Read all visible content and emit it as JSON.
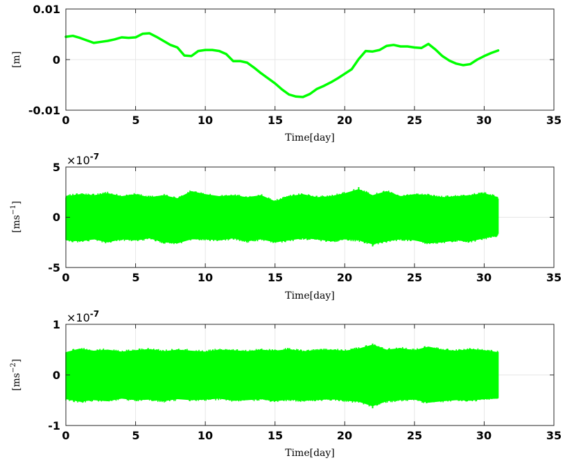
{
  "chart_data": [
    {
      "type": "line",
      "xlabel": "Time[day]",
      "ylabel": "[m]",
      "xlim": [
        0,
        35
      ],
      "ylim": [
        -0.01,
        0.01
      ],
      "xticks": [
        "0",
        "5",
        "10",
        "15",
        "20",
        "25",
        "30",
        "35"
      ],
      "yticks": [
        "-0.01",
        "0",
        "0.01"
      ],
      "grid": true,
      "color": "#00ff00",
      "series": [
        {
          "x": [
            0,
            0.5,
            1,
            1.5,
            2,
            2.5,
            3,
            3.5,
            4,
            4.5,
            5,
            5.5,
            6,
            6.5,
            7,
            7.5,
            8,
            8.5,
            9,
            9.5,
            10,
            10.5,
            11,
            11.5,
            12,
            12.5,
            13,
            13.5,
            14,
            14.5,
            15,
            15.5,
            16,
            16.5,
            17,
            17.5,
            18,
            18.5,
            19,
            19.5,
            20,
            20.5,
            21,
            21.5,
            22,
            22.5,
            23,
            23.5,
            24,
            24.5,
            25,
            25.5,
            26,
            26.5,
            27,
            27.5,
            28,
            28.5,
            29,
            29.5,
            30,
            30.5,
            31
          ],
          "y": [
            0.0045,
            0.0047,
            0.0043,
            0.0038,
            0.0033,
            0.0035,
            0.0037,
            0.004,
            0.0044,
            0.0043,
            0.0044,
            0.0051,
            0.0052,
            0.0045,
            0.0037,
            0.0029,
            0.0024,
            0.0008,
            0.0007,
            0.0017,
            0.0019,
            0.0019,
            0.0017,
            0.0011,
            -0.0003,
            -0.0003,
            -0.0006,
            -0.0016,
            -0.0027,
            -0.0037,
            -0.0047,
            -0.0059,
            -0.0069,
            -0.0073,
            -0.0074,
            -0.0068,
            -0.0058,
            -0.0052,
            -0.0045,
            -0.0037,
            -0.0028,
            -0.0019,
            0.0001,
            0.0017,
            0.0016,
            0.0019,
            0.0027,
            0.0029,
            0.0026,
            0.0026,
            0.0024,
            0.0023,
            0.0031,
            0.002,
            0.0007,
            -0.0002,
            -0.0008,
            -0.0011,
            -0.0009,
            0.0,
            0.0007,
            0.0013,
            0.0018
          ]
        }
      ]
    },
    {
      "type": "line",
      "xlabel": "Time[day]",
      "ylabel": "[ms-1]",
      "ylabel_base": "[ms",
      "ylabel_exp": "−1",
      "ylabel_close": "]",
      "multiplier_base": "×10",
      "multiplier_exp": "-7",
      "xlim": [
        0,
        35
      ],
      "ylim": [
        -5,
        5
      ],
      "xticks": [
        "0",
        "5",
        "10",
        "15",
        "20",
        "25",
        "30",
        "35"
      ],
      "yticks": [
        "-5",
        "0",
        "5"
      ],
      "grid": true,
      "color": "#00ff00",
      "series": [
        {
          "x_range": [
            0,
            31
          ],
          "envelope_x": [
            0,
            1,
            2,
            3,
            4,
            5,
            6,
            7,
            8,
            9,
            10,
            11,
            12,
            13,
            14,
            15,
            16,
            17,
            18,
            19,
            20,
            21,
            22,
            23,
            24,
            25,
            26,
            27,
            28,
            29,
            30,
            31
          ],
          "upper": [
            2.1,
            2.3,
            2.2,
            2.4,
            2.1,
            2.3,
            2.0,
            2.2,
            1.9,
            2.6,
            2.3,
            2.1,
            2.2,
            2.0,
            2.2,
            1.6,
            2.1,
            2.3,
            2.0,
            2.1,
            2.4,
            2.8,
            2.2,
            2.6,
            2.1,
            2.3,
            2.2,
            2.0,
            2.1,
            2.2,
            2.4,
            2.0
          ],
          "lower": [
            -2.3,
            -2.4,
            -2.2,
            -2.5,
            -2.2,
            -2.3,
            -2.1,
            -2.5,
            -2.6,
            -2.2,
            -2.2,
            -2.3,
            -2.1,
            -2.4,
            -2.2,
            -2.5,
            -2.3,
            -2.1,
            -2.2,
            -2.4,
            -2.2,
            -2.3,
            -2.7,
            -2.4,
            -2.2,
            -2.3,
            -2.6,
            -2.5,
            -2.3,
            -2.4,
            -2.1,
            -1.8
          ],
          "peak_max": 3.0,
          "peak_min": -2.9
        }
      ]
    },
    {
      "type": "line",
      "xlabel": "Time[day]",
      "ylabel": "[ms-2]",
      "ylabel_base": "[ms",
      "ylabel_exp": "−2",
      "ylabel_close": "]",
      "multiplier_base": "×10",
      "multiplier_exp": "-7",
      "xlim": [
        0,
        35
      ],
      "ylim": [
        -1,
        1
      ],
      "xticks": [
        "0",
        "5",
        "10",
        "15",
        "20",
        "25",
        "30",
        "35"
      ],
      "yticks": [
        "-1",
        "0",
        "1"
      ],
      "grid": true,
      "color": "#00ff00",
      "series": [
        {
          "x_range": [
            0,
            31
          ],
          "envelope_x": [
            0,
            1,
            2,
            3,
            4,
            5,
            6,
            7,
            8,
            9,
            10,
            11,
            12,
            13,
            14,
            15,
            16,
            17,
            18,
            19,
            20,
            21,
            22,
            23,
            24,
            25,
            26,
            27,
            28,
            29,
            30,
            31
          ],
          "upper": [
            0.45,
            0.52,
            0.48,
            0.5,
            0.46,
            0.49,
            0.51,
            0.47,
            0.5,
            0.48,
            0.46,
            0.5,
            0.49,
            0.47,
            0.5,
            0.48,
            0.51,
            0.47,
            0.49,
            0.5,
            0.48,
            0.52,
            0.6,
            0.5,
            0.53,
            0.49,
            0.56,
            0.5,
            0.48,
            0.51,
            0.49,
            0.45
          ],
          "lower": [
            -0.48,
            -0.53,
            -0.5,
            -0.52,
            -0.47,
            -0.5,
            -0.49,
            -0.52,
            -0.48,
            -0.5,
            -0.49,
            -0.47,
            -0.51,
            -0.5,
            -0.48,
            -0.52,
            -0.49,
            -0.51,
            -0.5,
            -0.48,
            -0.51,
            -0.53,
            -0.62,
            -0.52,
            -0.5,
            -0.49,
            -0.55,
            -0.52,
            -0.5,
            -0.51,
            -0.48,
            -0.47
          ],
          "peak_max": 0.62,
          "peak_min": -0.66
        }
      ]
    }
  ]
}
